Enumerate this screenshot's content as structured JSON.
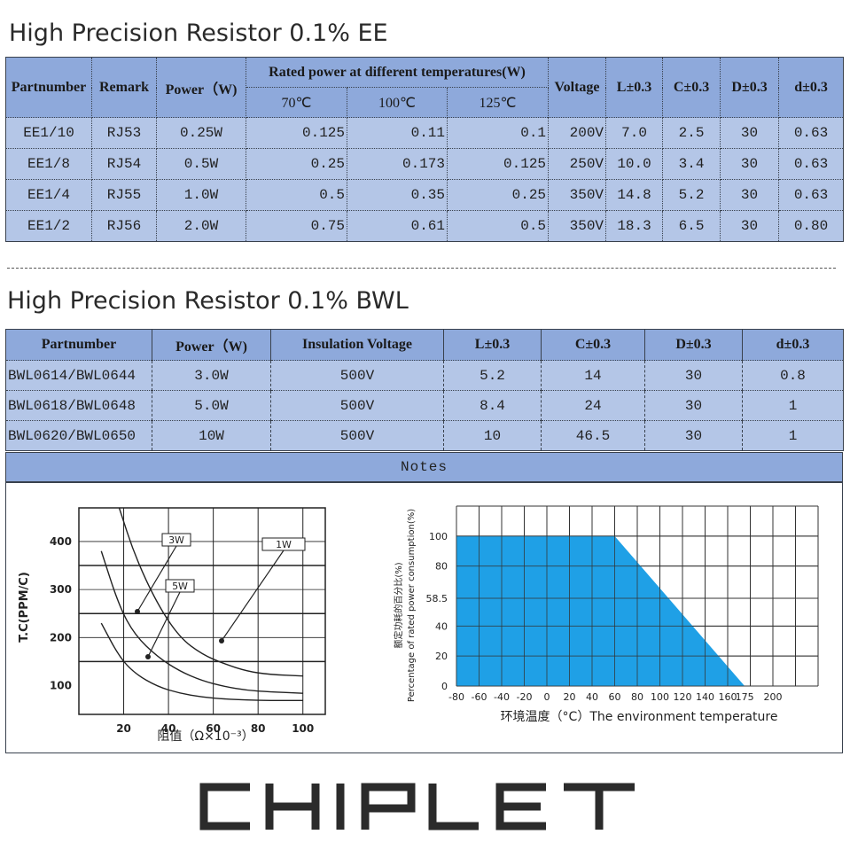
{
  "ee": {
    "title": "High Precision Resistor 0.1% EE",
    "headers": {
      "partnumber": "Partnumber",
      "remark": "Remark",
      "power": "Power（W)",
      "rated": "Rated power at different temperatures(W)",
      "t70": "70℃",
      "t100": "100℃",
      "t125": "125℃",
      "voltage": "Voltage",
      "l": "L±0.3",
      "c": "C±0.3",
      "d": "D±0.3",
      "dd": "d±0.3"
    },
    "rows": [
      {
        "part": "EE1/10",
        "remark": "RJ53",
        "power": "0.25W",
        "p70": "0.125",
        "p100": "0.11",
        "p125": "0.1",
        "voltage": "200V",
        "l": "7.0",
        "c": "2.5",
        "d": "30",
        "dd": "0.63"
      },
      {
        "part": "EE1/8",
        "remark": "RJ54",
        "power": "0.5W",
        "p70": "0.25",
        "p100": "0.173",
        "p125": "0.125",
        "voltage": "250V",
        "l": "10.0",
        "c": "3.4",
        "d": "30",
        "dd": "0.63"
      },
      {
        "part": "EE1/4",
        "remark": "RJ55",
        "power": "1.0W",
        "p70": "0.5",
        "p100": "0.35",
        "p125": "0.25",
        "voltage": "350V",
        "l": "14.8",
        "c": "5.2",
        "d": "30",
        "dd": "0.63"
      },
      {
        "part": "EE1/2",
        "remark": "RJ56",
        "power": "2.0W",
        "p70": "0.75",
        "p100": "0.61",
        "p125": "0.5",
        "voltage": "350V",
        "l": "18.3",
        "c": "6.5",
        "d": "30",
        "dd": "0.80"
      }
    ]
  },
  "bwl": {
    "title": "High Precision Resistor 0.1% BWL",
    "headers": {
      "partnumber": "Partnumber",
      "power": "Power（W)",
      "insulation": "Insulation Voltage",
      "l": "L±0.3",
      "c": "C±0.3",
      "d": "D±0.3",
      "dd": "d±0.3"
    },
    "rows": [
      {
        "part": "BWL0614/BWL0644",
        "power": "3.0W",
        "voltage": "500V",
        "l": "5.2",
        "c": "14",
        "d": "30",
        "dd": "0.8"
      },
      {
        "part": "BWL0618/BWL0648",
        "power": "5.0W",
        "voltage": "500V",
        "l": "8.4",
        "c": "24",
        "d": "30",
        "dd": "1"
      },
      {
        "part": "BWL0620/BWL0650",
        "power": "10W",
        "voltage": "500V",
        "l": "10",
        "c": "46.5",
        "d": "30",
        "dd": "1"
      }
    ]
  },
  "notes": {
    "label": "Notes"
  },
  "chart_data": [
    {
      "type": "line",
      "ylabel": "T.C(PPM/C)",
      "xlabel": "阻值（Ω×10⁻³）",
      "xticks": [
        "20",
        "40",
        "60",
        "80",
        "100"
      ],
      "yticks": [
        "100",
        "200",
        "300",
        "400"
      ],
      "xlim": [
        0,
        110
      ],
      "ylim": [
        40,
        470
      ],
      "series": [
        {
          "name": "1W",
          "x": [
            18,
            25,
            35,
            45,
            55,
            65,
            75,
            85,
            100
          ],
          "y": [
            470,
            370,
            270,
            200,
            165,
            145,
            130,
            123,
            120
          ]
        },
        {
          "name": "3W",
          "x": [
            10,
            18,
            25,
            35,
            45,
            55,
            65,
            75,
            85,
            100
          ],
          "y": [
            380,
            265,
            205,
            160,
            130,
            110,
            98,
            90,
            87,
            84
          ]
        },
        {
          "name": "5W",
          "x": [
            10,
            18,
            25,
            35,
            45,
            55,
            65,
            75,
            85,
            100
          ],
          "y": [
            230,
            160,
            125,
            98,
            84,
            76,
            72,
            70,
            69,
            69
          ]
        }
      ]
    },
    {
      "type": "area",
      "ylabel": "额定功耗的百分比(%) Percentage of rated power consumption(%)",
      "xlabel": "环境温度（°C）The environment temperature",
      "xticks": [
        "-80",
        "-60",
        "-40",
        "-20",
        "0",
        "20",
        "40",
        "60",
        "80",
        "100",
        "120",
        "140",
        "160",
        "175",
        "200"
      ],
      "yticks": [
        "0",
        "20",
        "40",
        "58.5",
        "80",
        "100"
      ],
      "xlim": [
        -80,
        240
      ],
      "ylim": [
        0,
        120
      ],
      "series": [
        {
          "name": "",
          "x": [
            -80,
            60,
            175
          ],
          "y": [
            100,
            100,
            0
          ]
        }
      ]
    }
  ],
  "colors": {
    "header_blue": "#8ea9db",
    "cell_blue": "#b4c6e7",
    "area_fill": "#1fa0e6"
  },
  "logo": {
    "text": "CHIPLET"
  }
}
